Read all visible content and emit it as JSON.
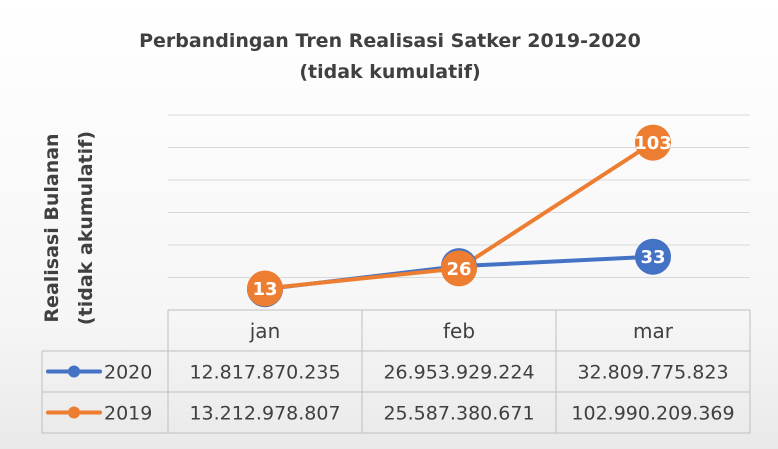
{
  "chart_data": {
    "type": "line",
    "title": [
      "Perbandingan Tren Realisasi Satker 2019-2020",
      "(tidak kumulatif)"
    ],
    "ylabel": [
      "Realisasi Bulanan",
      "(tidak akumulatif)"
    ],
    "xlabel": "",
    "categories": [
      "jan",
      "feb",
      "mar"
    ],
    "ylim": [
      0,
      120
    ],
    "grid": true,
    "legend": "data-table",
    "series": [
      {
        "name": "2020",
        "color": "#4472c4",
        "values": [
          12.8,
          27.0,
          32.8
        ],
        "point_labels": [
          "13",
          "27",
          "33"
        ],
        "table_values": [
          "12.817.870.235",
          "26.953.929.224",
          "32.809.775.823"
        ]
      },
      {
        "name": "2019",
        "color": "#ed7d31",
        "values": [
          13.2,
          25.6,
          103.0
        ],
        "point_labels": [
          "13",
          "26",
          "103"
        ],
        "table_values": [
          "13.212.978.807",
          "25.587.380.671",
          "102.990.209.369"
        ]
      }
    ]
  }
}
